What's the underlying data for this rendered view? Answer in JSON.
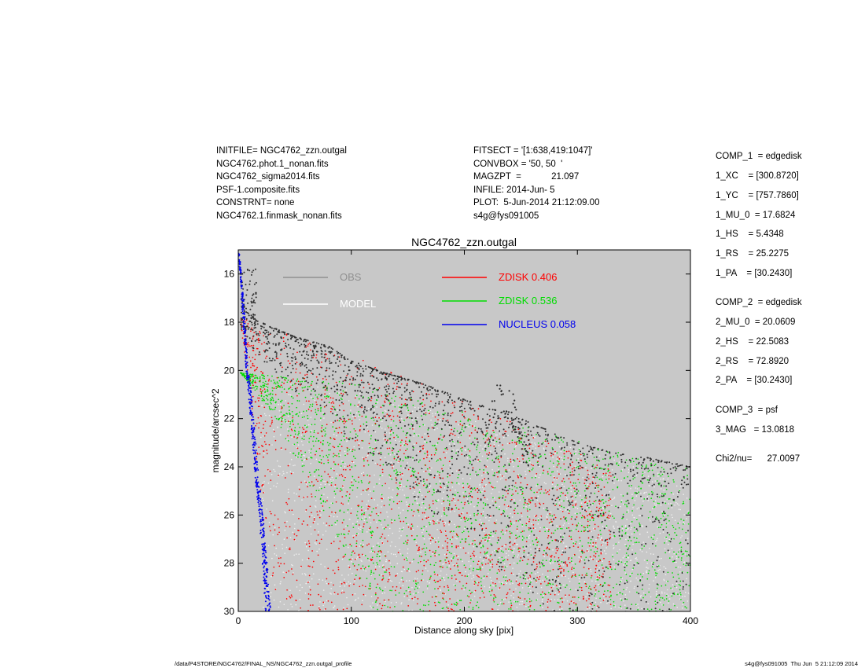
{
  "header_left": [
    "INITFILE= NGC4762_zzn.outgal",
    "NGC4762.phot.1_nonan.fits",
    "NGC4762_sigma2014.fits",
    "PSF-1.composite.fits",
    "CONSTRNT= none",
    "NGC4762.1.finmask_nonan.fits"
  ],
  "header_mid": [
    "FITSECT = '[1:638,419:1047]'",
    "CONVBOX = '50, 50  '",
    "MAGZPT  =            21.097",
    "INFILE: 2014-Jun- 5",
    "PLOT:  5-Jun-2014 21:12:09.00",
    "s4g@fys091005"
  ],
  "params": [
    "COMP_1  = edgedisk",
    "1_XC    = [300.8720]",
    "1_YC    = [757.7860]",
    "1_MU_0  = 17.6824",
    "1_HS    = 5.4348",
    "1_RS    = 25.2275",
    "1_PA    = [30.2430]",
    "COMP_2  = edgedisk",
    "2_MU_0  = 20.0609",
    "2_HS    = 22.5083",
    "2_RS    = 72.8920",
    "2_PA    = [30.2430]",
    "COMP_3  = psf",
    "3_MAG   = 13.0818",
    "Chi2/nu=      27.0097"
  ],
  "footer": {
    "left": "/data/P4STORE/NGC4762/FINAL_NS/NGC4762_zzn.outgal_profile",
    "right": "s4g@fys091005  Thu Jun  5 21:12:09 2014"
  },
  "colors": {
    "background": "#c8c8c8",
    "obs": "#909090",
    "model": "#ffffff",
    "zdisk1": "#ff0000",
    "zdisk2": "#00dd00",
    "nucleus": "#0000ee",
    "obs_points": "#303030"
  },
  "chart_data": {
    "type": "scatter",
    "title": "NGC4762_zzn.outgal",
    "xlabel": "Distance along sky [pix]",
    "ylabel": "magnitude/arcsec^2",
    "xlim": [
      0,
      400
    ],
    "ylim": [
      30,
      15
    ],
    "inverted_y": true,
    "xticks": [
      0,
      100,
      200,
      300,
      400
    ],
    "yticks": [
      16,
      18,
      20,
      22,
      24,
      26,
      28,
      30
    ],
    "grid": false,
    "legend": [
      {
        "label": "OBS",
        "color": "#909090"
      },
      {
        "label": "MODEL",
        "color": "#ffffff"
      },
      {
        "label": "ZDISK  0.406",
        "color": "#ff0000"
      },
      {
        "label": "ZDISK  0.536",
        "color": "#00dd00"
      },
      {
        "label": "NUCLEUS  0.058",
        "color": "#0000ee"
      }
    ],
    "series": [
      {
        "name": "ZDISK  0.406",
        "color": "#ff0000",
        "upper_edge": [
          [
            2,
            17.8
          ],
          [
            50,
            18.6
          ],
          [
            100,
            19.4
          ],
          [
            150,
            20.3
          ],
          [
            200,
            21.3
          ],
          [
            250,
            22.3
          ],
          [
            300,
            23.4
          ],
          [
            330,
            24.1
          ]
        ],
        "lower_edge": [
          [
            2,
            17.8
          ],
          [
            10,
            21.5
          ],
          [
            20,
            25.5
          ],
          [
            30,
            28.6
          ],
          [
            35,
            30.0
          ]
        ],
        "far_edge": [
          [
            330,
            24.1
          ],
          [
            325,
            30.0
          ]
        ]
      },
      {
        "name": "ZDISK  0.536",
        "color": "#00dd00",
        "upper_edge": [
          [
            2,
            20.1
          ],
          [
            100,
            20.5
          ],
          [
            200,
            21.7
          ],
          [
            300,
            22.9
          ],
          [
            380,
            24.0
          ]
        ],
        "lower_edge": [
          [
            2,
            20.1
          ],
          [
            30,
            21.8
          ],
          [
            60,
            24.5
          ],
          [
            90,
            27.2
          ],
          [
            120,
            30.0
          ]
        ],
        "far_edge": [
          [
            380,
            24.0
          ],
          [
            400,
            26.0
          ]
        ]
      },
      {
        "name": "NUCLEUS  0.058",
        "color": "#0000ee",
        "upper_edge": [
          [
            0,
            15.1
          ],
          [
            3,
            17.0
          ],
          [
            6,
            19.5
          ],
          [
            10,
            21.5
          ],
          [
            15,
            24.5
          ],
          [
            20,
            27.0
          ],
          [
            24,
            30.0
          ]
        ]
      },
      {
        "name": "OBS",
        "color": "#303030",
        "envelope": [
          [
            2,
            16.0
          ],
          [
            5,
            17.5
          ],
          [
            20,
            18.0
          ],
          [
            50,
            18.6
          ],
          [
            80,
            19.0
          ],
          [
            100,
            19.6
          ],
          [
            130,
            20.1
          ],
          [
            160,
            20.5
          ],
          [
            200,
            21.2
          ],
          [
            250,
            22.0
          ],
          [
            300,
            23.0
          ],
          [
            330,
            23.4
          ],
          [
            360,
            23.6
          ],
          [
            400,
            24.0
          ]
        ],
        "bump": [
          [
            220,
            22.0
          ],
          [
            225,
            21.0
          ],
          [
            232,
            20.3
          ],
          [
            240,
            20.6
          ],
          [
            248,
            21.5
          ],
          [
            255,
            22.5
          ]
        ]
      }
    ]
  }
}
